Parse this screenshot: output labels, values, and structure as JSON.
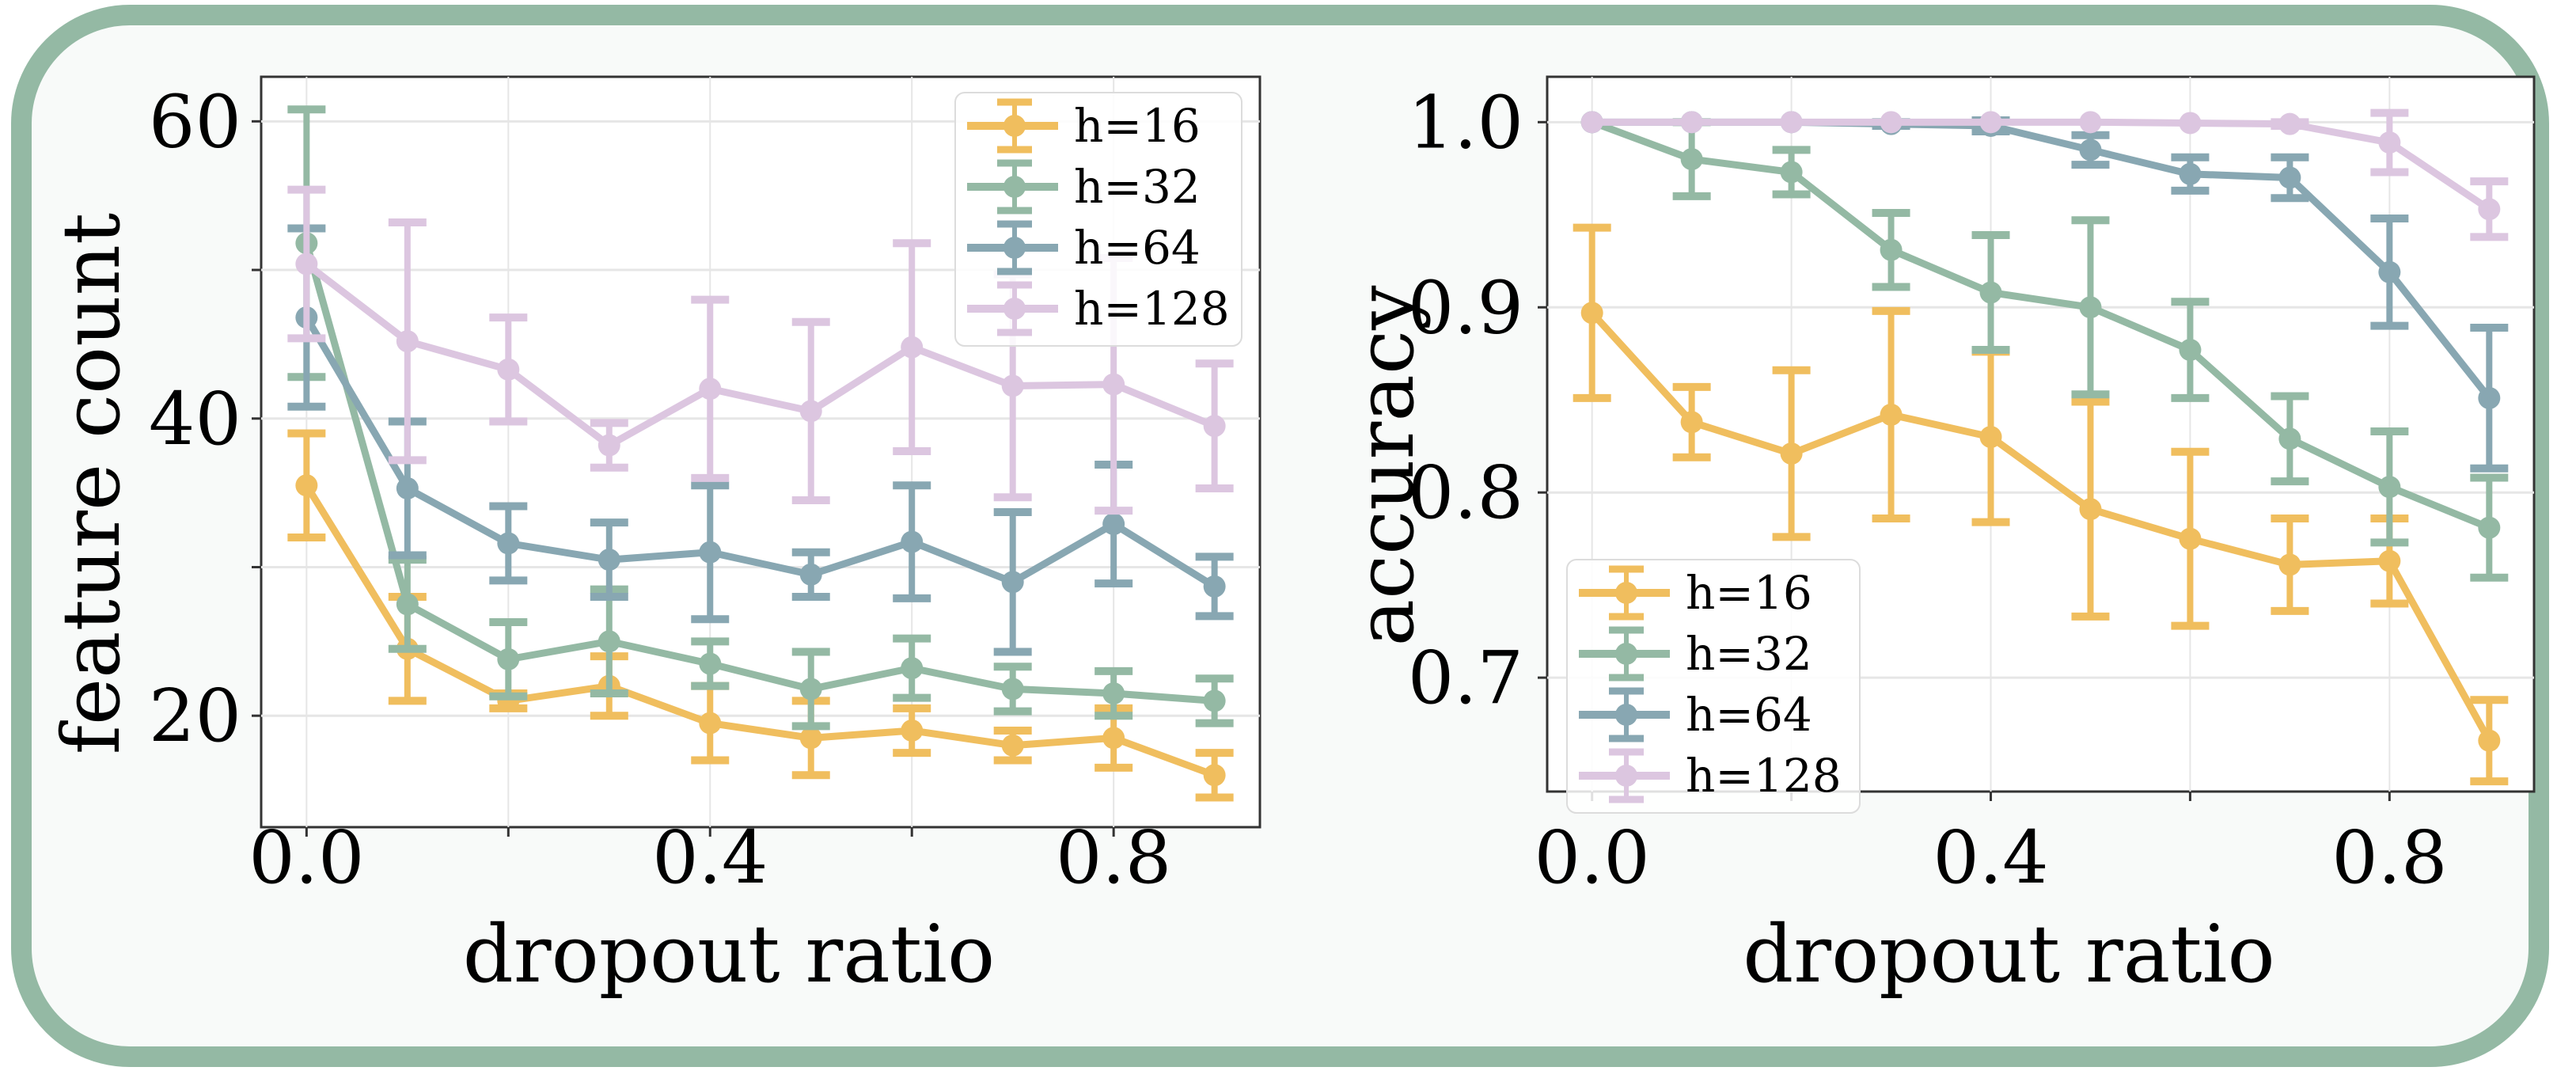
{
  "figure": {
    "frame_color": "#94b9a4",
    "background": "#f8faf9"
  },
  "chart_data": [
    {
      "type": "line",
      "error_bars": true,
      "title": "",
      "xlabel": "dropout ratio",
      "ylabel": "feature count",
      "x": [
        0.0,
        0.1,
        0.2,
        0.3,
        0.4,
        0.5,
        0.6,
        0.7,
        0.8,
        0.9
      ],
      "xticks": [
        "0.0",
        "0.4",
        "0.8"
      ],
      "xtick_values": [
        0.0,
        0.4,
        0.8
      ],
      "xlim": [
        -0.045,
        0.945
      ],
      "yticks": [
        "20",
        "40",
        "60"
      ],
      "ytick_values": [
        20,
        40,
        60
      ],
      "minor_y": [
        30,
        50
      ],
      "ylim": [
        12.5,
        63.0
      ],
      "grid": true,
      "legend": "top-right",
      "series": [
        {
          "name": "h=16",
          "color": "#f0be5e",
          "values": [
            35.5,
            24.5,
            21.0,
            22.0,
            19.5,
            18.5,
            19.0,
            18.0,
            18.5,
            16.0
          ],
          "err": [
            3.5,
            3.5,
            0.5,
            2.0,
            2.5,
            2.5,
            1.5,
            1.0,
            2.0,
            1.5
          ]
        },
        {
          "name": "h=32",
          "color": "#94b9a4",
          "values": [
            51.8,
            27.5,
            23.8,
            25.0,
            23.5,
            21.8,
            23.2,
            21.8,
            21.5,
            21.0
          ],
          "err": [
            9.0,
            3.0,
            2.5,
            3.5,
            1.5,
            2.5,
            2.0,
            1.5,
            1.5,
            1.5
          ]
        },
        {
          "name": "h=64",
          "color": "#88a7b2",
          "values": [
            46.8,
            35.3,
            31.6,
            30.5,
            31.0,
            29.5,
            31.7,
            29.0,
            32.9,
            28.7
          ],
          "err": [
            6.0,
            4.5,
            2.5,
            2.5,
            4.5,
            1.5,
            3.8,
            4.7,
            4.0,
            2.0
          ]
        },
        {
          "name": "h=128",
          "color": "#dcc6e0",
          "values": [
            50.4,
            45.2,
            43.3,
            38.2,
            42.0,
            40.5,
            44.8,
            42.2,
            42.3,
            39.5
          ],
          "err": [
            5.0,
            8.0,
            3.5,
            1.5,
            6.0,
            6.0,
            7.0,
            7.5,
            8.5,
            4.2
          ]
        }
      ]
    },
    {
      "type": "line",
      "error_bars": true,
      "title": "",
      "xlabel": "dropout ratio",
      "ylabel": "accuracy",
      "x": [
        0.0,
        0.1,
        0.2,
        0.3,
        0.4,
        0.5,
        0.6,
        0.7,
        0.8,
        0.9
      ],
      "xticks": [
        "0.0",
        "0.4",
        "0.8"
      ],
      "xtick_values": [
        0.0,
        0.4,
        0.8
      ],
      "xlim": [
        -0.045,
        0.945
      ],
      "yticks": [
        "0.7",
        "0.8",
        "0.9",
        "1.0"
      ],
      "ytick_values": [
        0.7,
        0.8,
        0.9,
        1.0
      ],
      "ylim": [
        0.6385,
        1.0245
      ],
      "grid": true,
      "legend": "bottom-left",
      "series": [
        {
          "name": "h=16",
          "color": "#f0be5e",
          "values": [
            0.897,
            0.838,
            0.821,
            0.842,
            0.83,
            0.791,
            0.775,
            0.761,
            0.763,
            0.666
          ],
          "err": [
            0.046,
            0.019,
            0.045,
            0.056,
            0.046,
            0.058,
            0.047,
            0.025,
            0.023,
            0.022
          ]
        },
        {
          "name": "h=32",
          "color": "#94b9a4",
          "values": [
            1.0,
            0.98,
            0.973,
            0.931,
            0.908,
            0.9,
            0.877,
            0.829,
            0.803,
            0.781
          ],
          "err": [
            0.0,
            0.02,
            0.012,
            0.02,
            0.031,
            0.047,
            0.026,
            0.023,
            0.03,
            0.027
          ]
        },
        {
          "name": "h=64",
          "color": "#88a7b2",
          "values": [
            1.0,
            1.0,
            1.0,
            0.999,
            0.998,
            0.985,
            0.972,
            0.97,
            0.919,
            0.851
          ],
          "err": [
            0.0,
            0.0,
            0.0,
            0.001,
            0.003,
            0.008,
            0.009,
            0.011,
            0.029,
            0.038
          ]
        },
        {
          "name": "h=128",
          "color": "#dcc6e0",
          "values": [
            1.0,
            1.0,
            1.0,
            1.0,
            1.0,
            1.0,
            0.9995,
            0.999,
            0.989,
            0.953
          ],
          "err": [
            0.0,
            0.0,
            0.0,
            0.0,
            0.0,
            0.0,
            0.0,
            0.001,
            0.016,
            0.015
          ]
        }
      ]
    }
  ]
}
